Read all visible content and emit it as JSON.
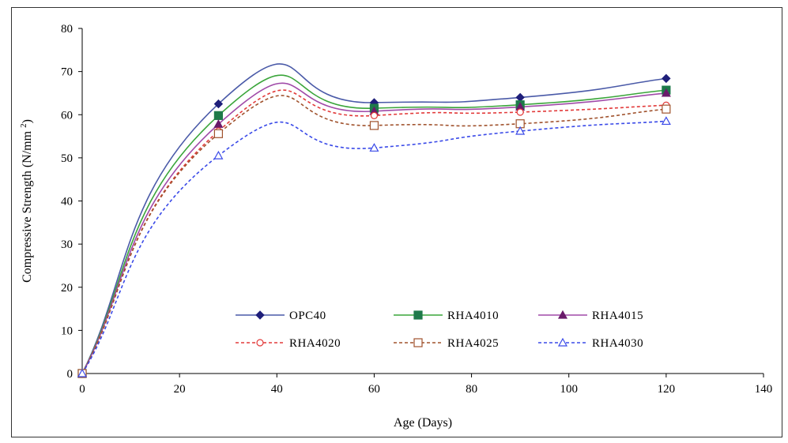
{
  "chart_data": {
    "type": "line",
    "xlabel": "Age (Days)",
    "ylabel": "Compressive Strength (N/mm",
    "ylabel_sup": "2",
    "ylabel_close": ")",
    "xlim": [
      0,
      140
    ],
    "ylim": [
      0,
      80
    ],
    "xticks": [
      "0",
      "20",
      "40",
      "60",
      "80",
      "100",
      "120",
      "140"
    ],
    "yticks": [
      "0",
      "10",
      "20",
      "30",
      "40",
      "50",
      "60",
      "70",
      "80"
    ],
    "grid": false,
    "legend_position": "bottom-center",
    "x": [
      0,
      28,
      60,
      90,
      120
    ],
    "series": [
      {
        "name": "OPC40",
        "values": [
          0,
          62.5,
          62.8,
          64.0,
          68.4
        ],
        "color": "#4a5aa8",
        "marker": "diamond",
        "fill": "#1f1f7a",
        "dash": false
      },
      {
        "name": "RHA4010",
        "values": [
          0,
          59.8,
          61.5,
          62.3,
          65.7
        ],
        "color": "#3aa53a",
        "marker": "square",
        "fill": "#1e7a4a",
        "dash": false
      },
      {
        "name": "RHA4015",
        "values": [
          0,
          57.8,
          60.8,
          61.8,
          65.0
        ],
        "color": "#a04aa8",
        "marker": "triangle",
        "fill": "#6a1a6a",
        "dash": false
      },
      {
        "name": "RHA4020",
        "values": [
          0,
          56.2,
          59.8,
          60.6,
          62.2
        ],
        "color": "#e23a3a",
        "marker": "circle",
        "fill": "#ffffff",
        "dash": true
      },
      {
        "name": "RHA4025",
        "values": [
          0,
          55.6,
          57.5,
          57.9,
          61.3
        ],
        "color": "#a0522d",
        "marker": "square-o",
        "fill": "#ffffff",
        "dash": true
      },
      {
        "name": "RHA4030",
        "values": [
          0,
          50.5,
          52.3,
          56.2,
          58.5
        ],
        "color": "#3a4ae8",
        "marker": "triangle-o",
        "fill": "#ffffff",
        "dash": true
      }
    ]
  }
}
